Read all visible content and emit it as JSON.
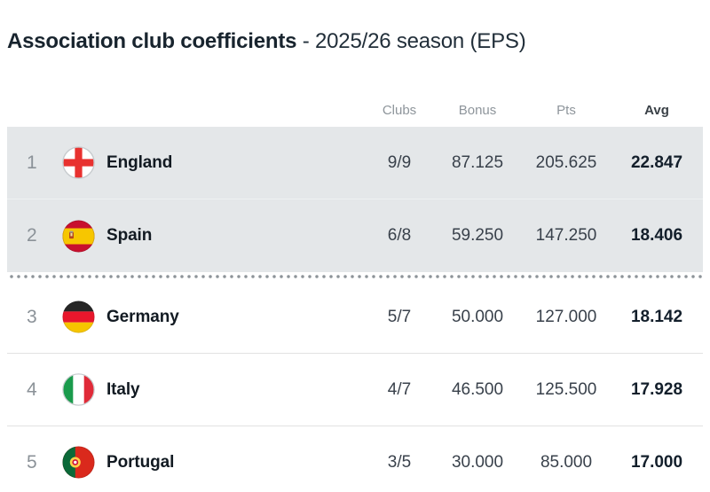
{
  "page": {
    "title_main": "Association club coefficients",
    "title_sub": "- 2025/26 season (EPS)"
  },
  "table": {
    "columns": {
      "clubs": "Clubs",
      "bonus": "Bonus",
      "pts": "Pts",
      "avg": "Avg"
    },
    "rows": [
      {
        "rank": "1",
        "flag": "england-flag-icon",
        "country": "England",
        "clubs": "9/9",
        "bonus": "87.125",
        "pts": "205.625",
        "avg": "22.847",
        "highlighted": true,
        "cutoff_below": false
      },
      {
        "rank": "2",
        "flag": "spain-flag-icon",
        "country": "Spain",
        "clubs": "6/8",
        "bonus": "59.250",
        "pts": "147.250",
        "avg": "18.406",
        "highlighted": true,
        "cutoff_below": true
      },
      {
        "rank": "3",
        "flag": "germany-flag-icon",
        "country": "Germany",
        "clubs": "5/7",
        "bonus": "50.000",
        "pts": "127.000",
        "avg": "18.142",
        "highlighted": false,
        "cutoff_below": false
      },
      {
        "rank": "4",
        "flag": "italy-flag-icon",
        "country": "Italy",
        "clubs": "4/7",
        "bonus": "46.500",
        "pts": "125.500",
        "avg": "17.928",
        "highlighted": false,
        "cutoff_below": false
      },
      {
        "rank": "5",
        "flag": "portugal-flag-icon",
        "country": "Portugal",
        "clubs": "3/5",
        "bonus": "30.000",
        "pts": "85.000",
        "avg": "17.000",
        "highlighted": false,
        "cutoff_below": false
      }
    ]
  },
  "colors": {
    "highlight_row_bg": "#e4e7e9",
    "title_text": "#18242e",
    "header_text": "#8e959b",
    "avg_text": "#131f2b",
    "dot_divider": "#8d9398"
  }
}
